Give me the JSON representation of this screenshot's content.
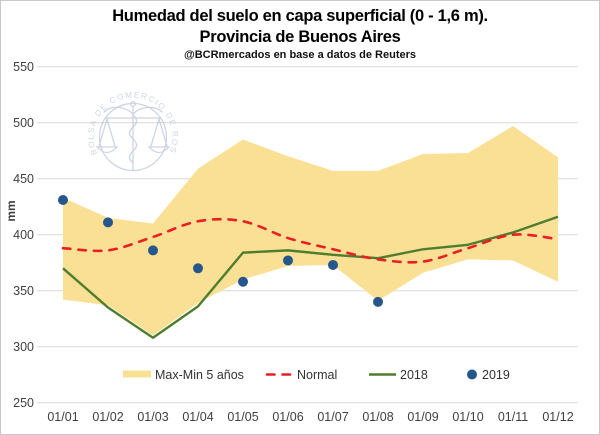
{
  "header": {
    "title_line1": "Humedad del suelo en capa superficial (0 - 1,6 m).",
    "title_line2": "Provincia de Buenos Aires",
    "source": "@BCRmercados en base a datos de Reuters"
  },
  "watermark": {
    "text": "BOLSA DE COMERCIO DE ROSARIO",
    "color": "#a5b2c9"
  },
  "colors": {
    "band": "#fae094",
    "normal": "#ea1e25",
    "y2018": "#4e7d2d",
    "y2019": "#26578c",
    "grid": "#d9d9d9",
    "tick_text": "#404040",
    "legend_text": "#333333"
  },
  "chart_data": {
    "type": "combo",
    "title": "Humedad del suelo en capa superficial (0 - 1,6 m). Provincia de Buenos Aires",
    "xlabel": "",
    "ylabel": "mm",
    "ylim": [
      250,
      550
    ],
    "yticks": [
      250,
      300,
      350,
      400,
      450,
      500,
      550
    ],
    "grid": true,
    "legend_position": "bottom",
    "categories": [
      "01/01",
      "01/02",
      "01/03",
      "01/04",
      "01/05",
      "01/06",
      "01/07",
      "01/08",
      "01/09",
      "01/10",
      "01/11",
      "01/12"
    ],
    "series": [
      {
        "name": "Max-Min 5 años",
        "type": "band",
        "max": [
          433,
          415,
          410,
          459,
          485,
          470,
          457,
          457,
          472,
          473,
          497,
          469
        ],
        "min": [
          342,
          337,
          310,
          339,
          360,
          372,
          373,
          341,
          366,
          378,
          377,
          358
        ]
      },
      {
        "name": "Normal",
        "type": "line",
        "dash": true,
        "values": [
          388,
          386,
          398,
          412,
          412,
          397,
          387,
          378,
          376,
          388,
          400,
          396
        ]
      },
      {
        "name": "2018",
        "type": "line",
        "dash": false,
        "values": [
          370,
          335,
          308,
          336,
          384,
          386,
          382,
          379,
          387,
          391,
          402,
          416
        ]
      },
      {
        "name": "2019",
        "type": "scatter",
        "values": [
          431,
          411,
          386,
          370,
          358,
          377,
          373,
          340,
          null,
          null,
          null,
          null
        ]
      }
    ]
  }
}
